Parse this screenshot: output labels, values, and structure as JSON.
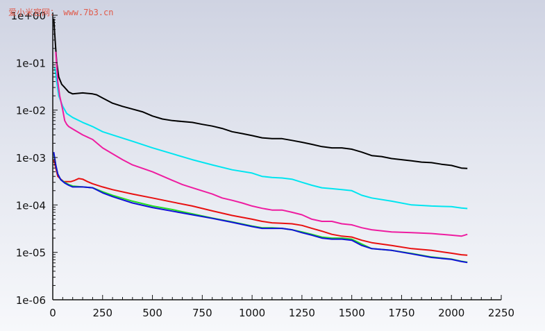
{
  "watermark": "爱小米官网： www.7b3.cn",
  "chart_data": {
    "type": "line",
    "title": "",
    "xlabel": "",
    "ylabel": "",
    "y_scale": "log",
    "xlim": [
      0,
      2250
    ],
    "ylim": [
      1e-06,
      1
    ],
    "x_ticks": [
      0,
      250,
      500,
      750,
      1000,
      1250,
      1500,
      1750,
      2000,
      2250
    ],
    "x_tick_labels": [
      "0",
      "250",
      "500",
      "750",
      "1000",
      "1250",
      "1500",
      "1750",
      "2000",
      "2250"
    ],
    "y_ticks": [
      1,
      0.1,
      0.01,
      0.001,
      0.0001,
      1e-05,
      1e-06
    ],
    "y_tick_labels": [
      "1e+00",
      "1e-01",
      "1e-02",
      "1e-03",
      "1e-04",
      "1e-05",
      "1e-06"
    ],
    "grid": false,
    "series": [
      {
        "color": "#000000",
        "x": [
          5,
          12,
          20,
          30,
          45,
          60,
          80,
          100,
          150,
          200,
          220,
          250,
          300,
          350,
          400,
          450,
          500,
          550,
          600,
          700,
          750,
          800,
          850,
          900,
          950,
          1000,
          1050,
          1100,
          1150,
          1200,
          1250,
          1300,
          1350,
          1400,
          1450,
          1500,
          1550,
          1600,
          1650,
          1700,
          1750,
          1800,
          1850,
          1900,
          1950,
          2000,
          2050,
          2080
        ],
        "y": [
          0.85,
          0.3,
          0.1,
          0.05,
          0.035,
          0.03,
          0.024,
          0.022,
          0.023,
          0.022,
          0.021,
          0.018,
          0.014,
          0.012,
          0.0105,
          0.0092,
          0.0075,
          0.0065,
          0.006,
          0.0055,
          0.005,
          0.0046,
          0.0041,
          0.0035,
          0.0032,
          0.0029,
          0.0026,
          0.0025,
          0.0025,
          0.0023,
          0.0021,
          0.0019,
          0.0017,
          0.0016,
          0.0016,
          0.0015,
          0.0013,
          0.0011,
          0.00105,
          0.00095,
          0.0009,
          0.00085,
          0.0008,
          0.00078,
          0.00072,
          0.00068,
          0.0006,
          0.00059
        ]
      },
      {
        "color": "#00e5f0",
        "x": [
          10,
          20,
          30,
          50,
          70,
          100,
          150,
          200,
          250,
          300,
          400,
          500,
          600,
          700,
          800,
          900,
          1000,
          1050,
          1100,
          1150,
          1200,
          1250,
          1300,
          1350,
          1400,
          1450,
          1500,
          1550,
          1600,
          1700,
          1800,
          1900,
          2000,
          2050,
          2080
        ],
        "y": [
          0.08,
          0.04,
          0.02,
          0.012,
          0.0085,
          0.007,
          0.0055,
          0.0045,
          0.0035,
          0.003,
          0.0022,
          0.0016,
          0.0012,
          0.0009,
          0.0007,
          0.00055,
          0.00047,
          0.0004,
          0.00038,
          0.00037,
          0.00035,
          0.0003,
          0.00026,
          0.00023,
          0.00022,
          0.00021,
          0.0002,
          0.00016,
          0.00014,
          0.00012,
          0.0001,
          9.5e-05,
          9.2e-05,
          8.6e-05,
          8.4e-05
        ]
      },
      {
        "color": "#ee1ca0",
        "x": [
          15,
          25,
          35,
          50,
          60,
          70,
          80,
          100,
          150,
          200,
          250,
          300,
          350,
          400,
          500,
          600,
          650,
          700,
          800,
          850,
          900,
          950,
          1000,
          1050,
          1100,
          1150,
          1200,
          1250,
          1300,
          1350,
          1400,
          1450,
          1500,
          1550,
          1600,
          1700,
          1800,
          1900,
          2000,
          2050,
          2080
        ],
        "y": [
          0.17,
          0.04,
          0.02,
          0.01,
          0.006,
          0.005,
          0.0045,
          0.004,
          0.003,
          0.0024,
          0.0016,
          0.0012,
          0.0009,
          0.0007,
          0.0005,
          0.00033,
          0.00027,
          0.00023,
          0.00017,
          0.00014,
          0.000125,
          0.00011,
          9.5e-05,
          8.5e-05,
          7.8e-05,
          7.8e-05,
          7e-05,
          6.2e-05,
          5e-05,
          4.5e-05,
          4.5e-05,
          4e-05,
          3.8e-05,
          3.3e-05,
          3e-05,
          2.7e-05,
          2.6e-05,
          2.5e-05,
          2.3e-05,
          2.2e-05,
          2.4e-05
        ]
      },
      {
        "color": "#e81010",
        "x": [
          5,
          15,
          25,
          40,
          55,
          70,
          90,
          110,
          130,
          150,
          175,
          200,
          250,
          300,
          400,
          500,
          600,
          700,
          800,
          900,
          1000,
          1050,
          1100,
          1150,
          1200,
          1250,
          1300,
          1350,
          1400,
          1450,
          1500,
          1550,
          1600,
          1700,
          1800,
          1900,
          2000,
          2050,
          2080
        ],
        "y": [
          0.0009,
          0.0006,
          0.0004,
          0.00035,
          0.00031,
          0.00031,
          0.00031,
          0.00033,
          0.00036,
          0.00035,
          0.00031,
          0.00028,
          0.00024,
          0.00021,
          0.00017,
          0.00014,
          0.000115,
          9.5e-05,
          7.5e-05,
          6e-05,
          5e-05,
          4.5e-05,
          4.2e-05,
          4.1e-05,
          4e-05,
          3.7e-05,
          3.2e-05,
          2.8e-05,
          2.4e-05,
          2.2e-05,
          2.1e-05,
          1.8e-05,
          1.6e-05,
          1.4e-05,
          1.2e-05,
          1.1e-05,
          9.6e-06,
          8.9e-06,
          8.7e-06
        ]
      },
      {
        "color": "#22dd22",
        "x": [
          5,
          15,
          25,
          40,
          60,
          80,
          100,
          150,
          200,
          250,
          300,
          400,
          500,
          600,
          700,
          800,
          900,
          1000,
          1050,
          1100,
          1150,
          1200,
          1250,
          1300,
          1350,
          1400,
          1450,
          1500,
          1550,
          1600,
          1700,
          1800,
          1900,
          2000,
          2050,
          2080
        ],
        "y": [
          0.0012,
          0.0007,
          0.00045,
          0.00034,
          0.0003,
          0.00027,
          0.00025,
          0.00024,
          0.00023,
          0.00019,
          0.00016,
          0.00012,
          9.5e-05,
          8e-05,
          6.5e-05,
          5.3e-05,
          4.4e-05,
          3.6e-05,
          3.3e-05,
          3.3e-05,
          3.2e-05,
          3e-05,
          2.7e-05,
          2.4e-05,
          2.1e-05,
          2e-05,
          2e-05,
          1.9e-05,
          1.5e-05,
          1.2e-05,
          1.1e-05,
          9.5e-06,
          8e-06,
          7.2e-06,
          6.5e-06,
          6.2e-06
        ]
      },
      {
        "color": "#1010d8",
        "x": [
          5,
          15,
          25,
          40,
          60,
          80,
          100,
          150,
          200,
          250,
          300,
          400,
          500,
          600,
          700,
          800,
          900,
          1000,
          1050,
          1100,
          1150,
          1200,
          1250,
          1300,
          1350,
          1400,
          1450,
          1500,
          1550,
          1600,
          1700,
          1800,
          1900,
          2000,
          2050,
          2080
        ],
        "y": [
          0.0013,
          0.0007,
          0.00045,
          0.00034,
          0.00029,
          0.00026,
          0.00024,
          0.00024,
          0.00023,
          0.00018,
          0.00015,
          0.00011,
          8.8e-05,
          7.4e-05,
          6.2e-05,
          5.2e-05,
          4.3e-05,
          3.5e-05,
          3.2e-05,
          3.2e-05,
          3.2e-05,
          3e-05,
          2.6e-05,
          2.3e-05,
          2e-05,
          1.9e-05,
          1.9e-05,
          1.8e-05,
          1.4e-05,
          1.2e-05,
          1.1e-05,
          9.3e-06,
          7.8e-06,
          7.1e-06,
          6.4e-06,
          6.1e-06
        ]
      }
    ]
  }
}
